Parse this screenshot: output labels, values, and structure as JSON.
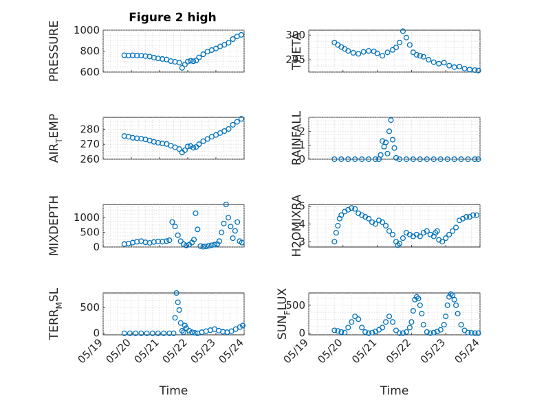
{
  "figure": {
    "title": "Figure 2 high",
    "marker_color": "#0072BD",
    "x_axis": {
      "label": "Time",
      "ticks": [
        "05/19",
        "05/20",
        "05/21",
        "05/22",
        "05/23",
        "05/24"
      ],
      "range_days": [
        19,
        24
      ]
    }
  },
  "chart_data": [
    {
      "type": "scatter",
      "title": "Figure 2 high",
      "ylabel": "PRESSURE",
      "ylim": [
        600,
        1000
      ],
      "yticks": [
        600,
        800,
        1000
      ],
      "ytick_labels": [
        "600",
        "800",
        "1000"
      ],
      "xlabel": "",
      "xticks": [],
      "x": [
        19.75,
        19.9,
        20.05,
        20.2,
        20.35,
        20.5,
        20.65,
        20.8,
        20.95,
        21.1,
        21.25,
        21.4,
        21.55,
        21.7,
        21.8,
        21.9,
        22.0,
        22.1,
        22.2,
        22.3,
        22.4,
        22.55,
        22.7,
        22.85,
        23.0,
        23.15,
        23.3,
        23.45,
        23.6,
        23.75,
        23.9
      ],
      "y": [
        760,
        758,
        760,
        758,
        757,
        752,
        748,
        738,
        730,
        725,
        720,
        705,
        698,
        690,
        640,
        672,
        700,
        708,
        703,
        710,
        740,
        770,
        795,
        810,
        825,
        845,
        860,
        880,
        915,
        940,
        955
      ]
    },
    {
      "type": "scatter",
      "ylabel": "THETA",
      "ylim": [
        292.5,
        301
      ],
      "yticks": [
        295,
        300
      ],
      "ytick_labels": [
        "295",
        "300"
      ],
      "xlabel": "",
      "xticks": [],
      "x": [
        19.75,
        19.85,
        19.95,
        20.05,
        20.15,
        20.3,
        20.45,
        20.6,
        20.75,
        20.9,
        21.0,
        21.15,
        21.3,
        21.45,
        21.55,
        21.65,
        21.75,
        21.85,
        21.95,
        22.05,
        22.15,
        22.25,
        22.35,
        22.5,
        22.65,
        22.8,
        22.95,
        23.1,
        23.25,
        23.4,
        23.55,
        23.7,
        23.85,
        23.95
      ],
      "y": [
        298.5,
        298.0,
        297.6,
        297.2,
        296.8,
        296.4,
        296.2,
        296.6,
        296.8,
        296.7,
        296.3,
        295.8,
        296.5,
        297.0,
        297.5,
        298.5,
        300.8,
        299.5,
        298.0,
        296.5,
        296.0,
        295.8,
        295.6,
        295.0,
        294.5,
        294.2,
        294.4,
        293.8,
        293.5,
        293.6,
        293.2,
        293.0,
        292.9,
        292.8
      ]
    },
    {
      "type": "scatter",
      "ylabel": "AIR_TEMP",
      "ylim": [
        260,
        288
      ],
      "yticks": [
        260,
        270,
        280
      ],
      "ytick_labels": [
        "260",
        "270",
        "280"
      ],
      "xlabel": "",
      "xticks": [],
      "x": [
        19.75,
        19.9,
        20.05,
        20.2,
        20.35,
        20.5,
        20.65,
        20.8,
        20.95,
        21.1,
        21.25,
        21.4,
        21.55,
        21.7,
        21.8,
        21.9,
        22.0,
        22.1,
        22.2,
        22.3,
        22.4,
        22.55,
        22.7,
        22.85,
        23.0,
        23.15,
        23.3,
        23.45,
        23.6,
        23.75,
        23.9
      ],
      "y": [
        275.5,
        275.0,
        274.3,
        274.0,
        273.7,
        273.2,
        272.5,
        271.6,
        271.0,
        270.5,
        270.2,
        269.0,
        268.0,
        266.8,
        264.5,
        266.0,
        268.5,
        268.8,
        267.6,
        268.2,
        270.0,
        272.0,
        273.5,
        275.0,
        276.2,
        277.5,
        278.8,
        280.2,
        283.0,
        285.0,
        287.0
      ]
    },
    {
      "type": "scatter",
      "ylabel": "RAINFALL",
      "ylim": [
        0,
        3
      ],
      "yticks": [
        0,
        1,
        2
      ],
      "ytick_labels": [
        "0",
        "1",
        "2"
      ],
      "xlabel": "",
      "xticks": [],
      "x": [
        19.75,
        19.95,
        20.15,
        20.35,
        20.55,
        20.75,
        20.95,
        21.05,
        21.1,
        21.15,
        21.2,
        21.25,
        21.3,
        21.35,
        21.4,
        21.45,
        21.5,
        21.55,
        21.65,
        21.85,
        22.05,
        22.25,
        22.45,
        22.65,
        22.85,
        23.05,
        23.25,
        23.45,
        23.65,
        23.85,
        23.95
      ],
      "y": [
        0,
        0,
        0,
        0,
        0,
        0,
        0,
        0,
        0.3,
        1.3,
        0.9,
        1.2,
        0.4,
        2.0,
        2.8,
        1.4,
        0.8,
        0.1,
        0,
        0,
        0,
        0,
        0,
        0,
        0,
        0,
        0,
        0,
        0,
        0,
        0
      ]
    },
    {
      "type": "scatter",
      "ylabel": "MIXDEPTH",
      "ylim": [
        0,
        1450
      ],
      "yticks": [
        0,
        500,
        1000
      ],
      "ytick_labels": [
        "0",
        "500",
        "1000"
      ],
      "xlabel": "",
      "xticks": [],
      "x": [
        19.75,
        19.9,
        20.05,
        20.2,
        20.35,
        20.5,
        20.65,
        20.8,
        20.95,
        21.1,
        21.25,
        21.35,
        21.45,
        21.55,
        21.65,
        21.75,
        21.85,
        21.95,
        22.05,
        22.15,
        22.22,
        22.28,
        22.35,
        22.45,
        22.55,
        22.65,
        22.75,
        22.85,
        22.95,
        23.05,
        23.12,
        23.2,
        23.28,
        23.36,
        23.44,
        23.52,
        23.6,
        23.68,
        23.76,
        23.84,
        23.92
      ],
      "y": [
        100,
        120,
        150,
        180,
        200,
        160,
        140,
        170,
        190,
        180,
        200,
        230,
        850,
        700,
        400,
        200,
        100,
        50,
        80,
        150,
        250,
        1150,
        600,
        30,
        10,
        20,
        40,
        60,
        80,
        100,
        200,
        500,
        800,
        1450,
        1000,
        700,
        300,
        550,
        850,
        200,
        150
      ]
    },
    {
      "type": "scatter",
      "ylabel": "H2OMIXRA",
      "ylim": [
        2.7,
        5.1
      ],
      "yticks": [
        3,
        4,
        5
      ],
      "ytick_labels": [
        "3",
        "4",
        "5"
      ],
      "xlabel": "",
      "xticks": [],
      "x": [
        19.75,
        19.8,
        19.85,
        19.9,
        19.95,
        20.05,
        20.15,
        20.25,
        20.35,
        20.45,
        20.55,
        20.65,
        20.75,
        20.85,
        20.95,
        21.05,
        21.15,
        21.25,
        21.35,
        21.45,
        21.55,
        21.6,
        21.65,
        21.75,
        21.85,
        21.95,
        22.05,
        22.15,
        22.25,
        22.35,
        22.45,
        22.55,
        22.65,
        22.7,
        22.75,
        22.8,
        22.9,
        23.0,
        23.1,
        23.2,
        23.3,
        23.4,
        23.5,
        23.6,
        23.7,
        23.8,
        23.9
      ],
      "y": [
        3.0,
        3.5,
        3.9,
        4.3,
        4.5,
        4.7,
        4.8,
        4.9,
        4.85,
        4.6,
        4.5,
        4.4,
        4.3,
        4.1,
        4.0,
        4.2,
        4.1,
        3.9,
        3.6,
        3.4,
        3.0,
        2.8,
        2.9,
        3.2,
        3.5,
        3.4,
        3.3,
        3.4,
        3.3,
        3.5,
        3.6,
        3.4,
        3.3,
        3.5,
        3.6,
        3.1,
        3.0,
        3.2,
        3.4,
        3.6,
        3.8,
        4.2,
        4.3,
        4.4,
        4.4,
        4.5,
        4.5
      ]
    },
    {
      "type": "scatter",
      "ylabel": "TERR_MSL",
      "ylim": [
        -30,
        780
      ],
      "yticks": [
        0,
        500
      ],
      "ytick_labels": [
        "0",
        "500"
      ],
      "xlabel": "Time",
      "xticks": [
        "05/19",
        "05/20",
        "05/21",
        "05/22",
        "05/23",
        "05/24"
      ],
      "x": [
        19.75,
        19.95,
        20.15,
        20.35,
        20.55,
        20.75,
        20.95,
        21.15,
        21.35,
        21.5,
        21.55,
        21.6,
        21.65,
        21.7,
        21.75,
        21.8,
        21.85,
        21.9,
        21.95,
        22.05,
        22.15,
        22.25,
        22.35,
        22.5,
        22.65,
        22.8,
        22.95,
        23.1,
        23.25,
        23.4,
        23.55,
        23.7,
        23.85,
        23.95
      ],
      "y": [
        0,
        0,
        0,
        0,
        0,
        0,
        0,
        0,
        0,
        0,
        300,
        780,
        600,
        450,
        200,
        50,
        20,
        150,
        100,
        50,
        20,
        10,
        0,
        20,
        40,
        60,
        80,
        50,
        30,
        20,
        40,
        80,
        120,
        150
      ]
    },
    {
      "type": "scatter",
      "ylabel": "SUN_FLUX",
      "ylim": [
        -30,
        720
      ],
      "yticks": [
        0,
        500
      ],
      "ytick_labels": [
        "0",
        "500"
      ],
      "xlabel": "Time",
      "xticks": [
        "05/19",
        "05/20",
        "05/21",
        "05/22",
        "05/23",
        "05/24"
      ],
      "x": [
        19.75,
        19.85,
        19.95,
        20.05,
        20.15,
        20.25,
        20.35,
        20.45,
        20.55,
        20.65,
        20.75,
        20.85,
        20.95,
        21.05,
        21.15,
        21.25,
        21.35,
        21.45,
        21.55,
        21.65,
        21.75,
        21.85,
        21.95,
        22.0,
        22.05,
        22.1,
        22.15,
        22.2,
        22.25,
        22.3,
        22.35,
        22.45,
        22.55,
        22.65,
        22.75,
        22.85,
        22.95,
        23.0,
        23.05,
        23.1,
        23.15,
        23.2,
        23.25,
        23.3,
        23.35,
        23.45,
        23.55,
        23.65,
        23.75,
        23.85,
        23.95
      ],
      "y": [
        50,
        40,
        20,
        10,
        100,
        200,
        300,
        250,
        100,
        20,
        0,
        10,
        30,
        60,
        100,
        200,
        300,
        200,
        50,
        0,
        0,
        20,
        100,
        200,
        400,
        600,
        650,
        620,
        500,
        350,
        150,
        20,
        0,
        10,
        30,
        60,
        150,
        300,
        500,
        650,
        700,
        680,
        600,
        500,
        350,
        150,
        50,
        10,
        5,
        0,
        0
      ]
    }
  ]
}
